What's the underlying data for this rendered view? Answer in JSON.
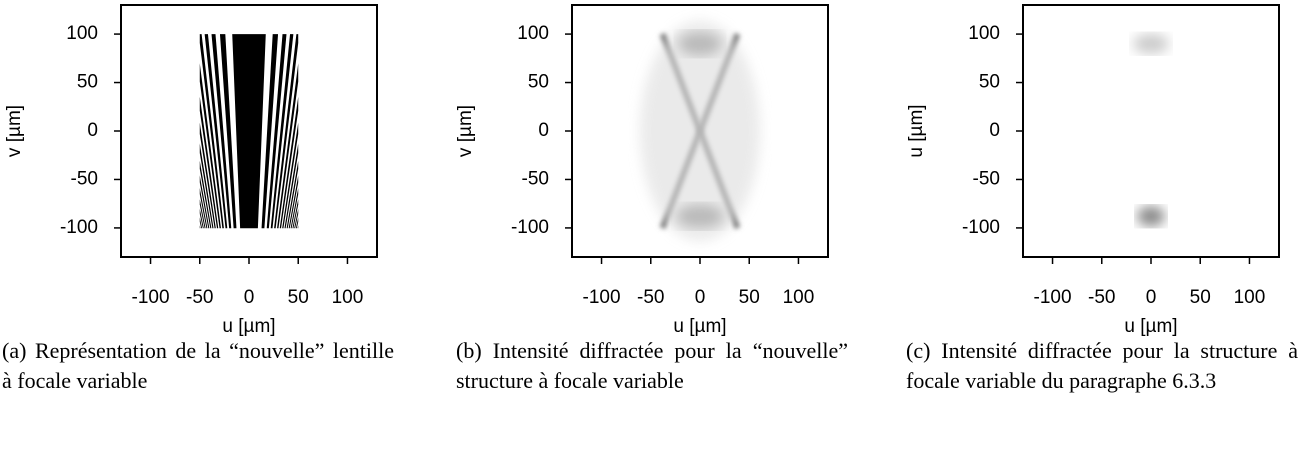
{
  "chart_data": [
    {
      "type": "image",
      "xlabel": "u [µm]",
      "ylabel": "v [µm]",
      "xlim": [
        -130,
        130
      ],
      "ylim": [
        -130,
        130
      ],
      "xticks": [
        -100,
        -50,
        0,
        50,
        100
      ],
      "yticks": [
        -100,
        -50,
        0,
        50,
        100
      ],
      "caption": "(a) Représentation de la “nouvelle” lentille à focale variable"
    },
    {
      "type": "image",
      "xlabel": "u [µm]",
      "ylabel": "v [µm]",
      "xlim": [
        -130,
        130
      ],
      "ylim": [
        -130,
        130
      ],
      "xticks": [
        -100,
        -50,
        0,
        50,
        100
      ],
      "yticks": [
        -100,
        -50,
        0,
        50,
        100
      ],
      "caption": "(b) Intensité diffractée pour la “nouvelle” structure à focale variable"
    },
    {
      "type": "image",
      "xlabel": "u [µm]",
      "ylabel": "u [µm]",
      "xlim": [
        -130,
        130
      ],
      "ylim": [
        -130,
        130
      ],
      "xticks": [
        -100,
        -50,
        0,
        50,
        100
      ],
      "yticks": [
        -100,
        -50,
        0,
        50,
        100
      ],
      "caption": "(c) Intensité diffractée pour la structure à focale variable du paragraphe 6.3.3"
    }
  ]
}
